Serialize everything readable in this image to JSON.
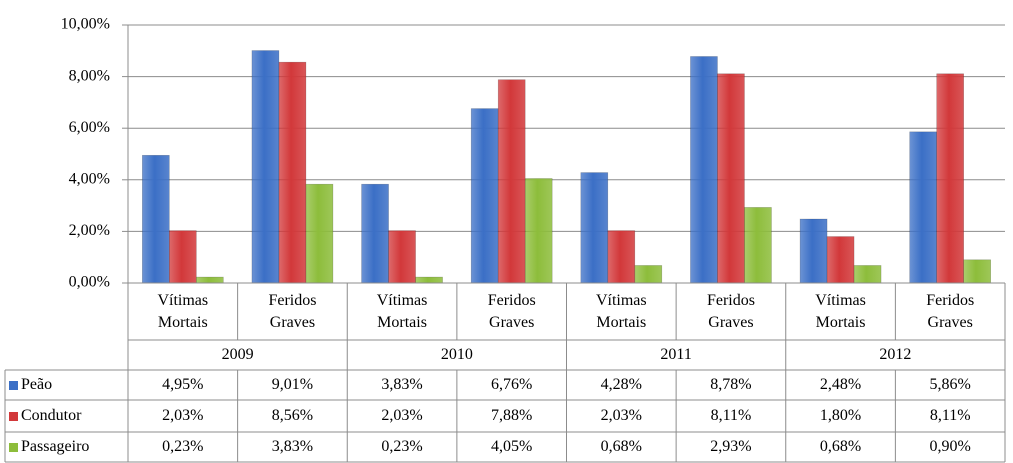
{
  "chart_data": {
    "type": "bar",
    "categories": [
      "Vítimas Mortais",
      "Feridos Graves",
      "Vítimas Mortais",
      "Feridos Graves",
      "Vítimas Mortais",
      "Feridos Graves",
      "Vítimas Mortais",
      "Feridos Graves"
    ],
    "groups": [
      "2009",
      "2010",
      "2011",
      "2012"
    ],
    "series": [
      {
        "name": "Peão",
        "color": "#3b6fc6",
        "values": [
          4.95,
          9.01,
          3.83,
          6.76,
          4.28,
          8.78,
          2.48,
          5.86
        ],
        "value_labels": [
          "4,95%",
          "9,01%",
          "3,83%",
          "6,76%",
          "4,28%",
          "8,78%",
          "2,48%",
          "5,86%"
        ]
      },
      {
        "name": "Condutor",
        "color": "#d2383a",
        "values": [
          2.03,
          8.56,
          2.03,
          7.88,
          2.03,
          8.11,
          1.8,
          8.11
        ],
        "value_labels": [
          "2,03%",
          "8,56%",
          "2,03%",
          "7,88%",
          "2,03%",
          "8,11%",
          "1,80%",
          "8,11%"
        ]
      },
      {
        "name": "Passageiro",
        "color": "#8dbd3b",
        "values": [
          0.23,
          3.83,
          0.23,
          4.05,
          0.68,
          2.93,
          0.68,
          0.9
        ],
        "value_labels": [
          "0,23%",
          "3,83%",
          "0,23%",
          "4,05%",
          "0,68%",
          "2,93%",
          "0,68%",
          "0,90%"
        ]
      }
    ],
    "ylim": [
      0,
      10
    ],
    "yticks": [
      {
        "value": 0,
        "label": "0,00%"
      },
      {
        "value": 2,
        "label": "2,00%"
      },
      {
        "value": 4,
        "label": "4,00%"
      },
      {
        "value": 6,
        "label": "6,00%"
      },
      {
        "value": 8,
        "label": "8,00%"
      },
      {
        "value": 10,
        "label": "10,00%"
      }
    ],
    "grid": true
  }
}
